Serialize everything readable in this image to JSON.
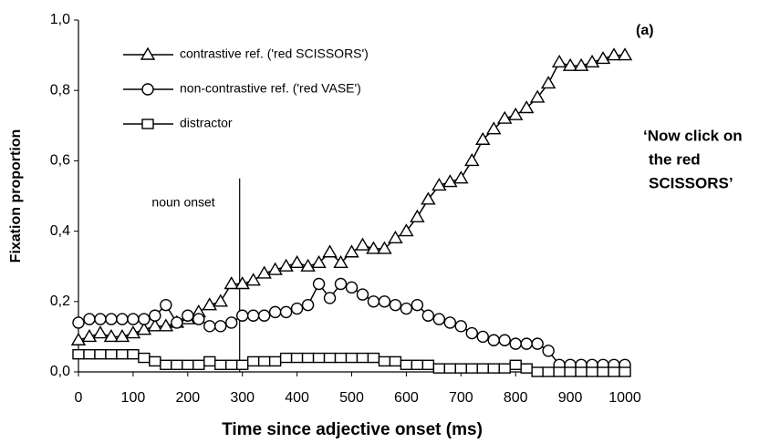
{
  "chart_data": {
    "type": "line",
    "xlabel": "Time since adjective onset (ms)",
    "ylabel": "Fixation proportion",
    "panel_label": "(a)",
    "instruction": [
      "‘Now click on",
      "the red",
      "SCISSORS’"
    ],
    "annotations": [
      {
        "text": "noun onset",
        "x": 295,
        "y": 0.55
      }
    ],
    "x": [
      0,
      20,
      40,
      60,
      80,
      100,
      120,
      140,
      160,
      180,
      200,
      220,
      240,
      260,
      280,
      300,
      320,
      340,
      360,
      380,
      400,
      420,
      440,
      460,
      480,
      500,
      520,
      540,
      560,
      580,
      600,
      620,
      640,
      660,
      680,
      700,
      720,
      740,
      760,
      780,
      800,
      820,
      840,
      860,
      880,
      900,
      920,
      940,
      960,
      980,
      1000
    ],
    "series": [
      {
        "name": "contrastive ref. ('red SCISSORS')",
        "color": "#000000",
        "marker": "triangle",
        "values": [
          0.09,
          0.1,
          0.11,
          0.1,
          0.1,
          0.11,
          0.12,
          0.13,
          0.13,
          0.14,
          0.15,
          0.17,
          0.19,
          0.2,
          0.25,
          0.25,
          0.26,
          0.28,
          0.29,
          0.3,
          0.31,
          0.3,
          0.31,
          0.34,
          0.31,
          0.34,
          0.36,
          0.35,
          0.35,
          0.38,
          0.4,
          0.44,
          0.49,
          0.53,
          0.54,
          0.55,
          0.6,
          0.66,
          0.69,
          0.72,
          0.73,
          0.75,
          0.78,
          0.82,
          0.88,
          0.87,
          0.87,
          0.88,
          0.89,
          0.9,
          0.9
        ]
      },
      {
        "name": "non-contrastive ref. ('red VASE')",
        "color": "#000000",
        "marker": "circle",
        "values": [
          0.14,
          0.15,
          0.15,
          0.15,
          0.15,
          0.15,
          0.15,
          0.16,
          0.19,
          0.14,
          0.16,
          0.15,
          0.13,
          0.13,
          0.14,
          0.16,
          0.16,
          0.16,
          0.17,
          0.17,
          0.18,
          0.19,
          0.25,
          0.21,
          0.25,
          0.24,
          0.22,
          0.2,
          0.2,
          0.19,
          0.18,
          0.19,
          0.16,
          0.15,
          0.14,
          0.13,
          0.11,
          0.1,
          0.09,
          0.09,
          0.08,
          0.08,
          0.08,
          0.06,
          0.02,
          0.02,
          0.02,
          0.02,
          0.02,
          0.02,
          0.02
        ]
      },
      {
        "name": "distractor",
        "color": "#000000",
        "marker": "square",
        "values": [
          0.05,
          0.05,
          0.05,
          0.05,
          0.05,
          0.05,
          0.04,
          0.03,
          0.02,
          0.02,
          0.02,
          0.02,
          0.03,
          0.02,
          0.02,
          0.02,
          0.03,
          0.03,
          0.03,
          0.04,
          0.04,
          0.04,
          0.04,
          0.04,
          0.04,
          0.04,
          0.04,
          0.04,
          0.03,
          0.03,
          0.02,
          0.02,
          0.02,
          0.01,
          0.01,
          0.01,
          0.01,
          0.01,
          0.01,
          0.01,
          0.02,
          0.01,
          0.0,
          0.0,
          0.0,
          0.0,
          0.0,
          0.0,
          0.0,
          0.0,
          0.0
        ]
      }
    ],
    "xlim": [
      0,
      1000
    ],
    "ylim": [
      0,
      1
    ],
    "xticks": [
      0,
      100,
      200,
      300,
      400,
      500,
      600,
      700,
      800,
      900,
      1000
    ],
    "yticks": [
      {
        "value": 0,
        "label": "0,0"
      },
      {
        "value": 0.2,
        "label": "0,2"
      },
      {
        "value": 0.4,
        "label": "0,4"
      },
      {
        "value": 0.6,
        "label": "0,6"
      },
      {
        "value": 0.8,
        "label": "0,8"
      },
      {
        "value": 1,
        "label": "1,0"
      }
    ],
    "legend": "upper left",
    "grid": false
  }
}
